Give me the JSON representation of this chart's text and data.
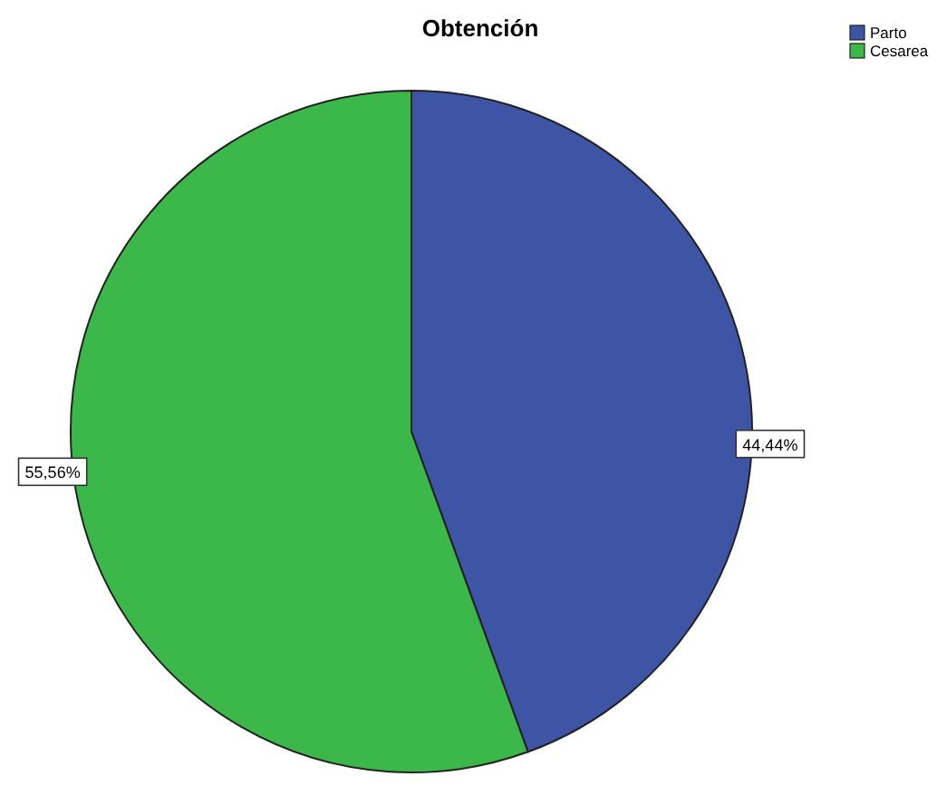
{
  "chart_data": {
    "type": "pie",
    "title": "Obtención",
    "categories": [
      "Parto",
      "Cesarea"
    ],
    "values": [
      44.44,
      55.56
    ],
    "colors": [
      "#3e55a6",
      "#3cb84a"
    ],
    "value_labels": [
      "44,44%",
      "55,56%"
    ],
    "legend": "top right"
  }
}
